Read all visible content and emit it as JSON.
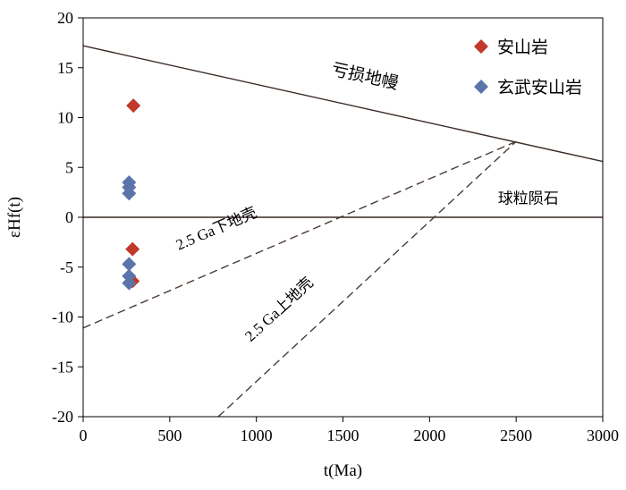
{
  "chart_data": {
    "type": "scatter",
    "xlabel": "t(Ma)",
    "ylabel": "εHf(t)",
    "xlim": [
      0,
      3000
    ],
    "ylim": [
      -20,
      20
    ],
    "x_ticks": [
      "0",
      "500",
      "1000",
      "1500",
      "2000",
      "2500",
      "3000"
    ],
    "y_ticks": [
      "20",
      "15",
      "10",
      "5",
      "0",
      "-5",
      "-10",
      "-15",
      "-20"
    ],
    "grid": false,
    "legend_position": "top-right",
    "series": [
      {
        "name": "安山岩",
        "marker": "diamond",
        "color": "#c0392b",
        "points": [
          {
            "x": 290,
            "y": 11.2
          },
          {
            "x": 285,
            "y": -3.2
          },
          {
            "x": 285,
            "y": -6.4
          }
        ]
      },
      {
        "name": "玄武安山岩",
        "marker": "diamond",
        "color": "#5b75aa",
        "points": [
          {
            "x": 265,
            "y": 3.5
          },
          {
            "x": 265,
            "y": 3.0
          },
          {
            "x": 265,
            "y": 2.4
          },
          {
            "x": 265,
            "y": -4.7
          },
          {
            "x": 265,
            "y": -5.9
          },
          {
            "x": 265,
            "y": -6.6
          }
        ]
      }
    ],
    "reference_lines": [
      {
        "label": "亏损地幔",
        "style": "solid",
        "x": [
          0,
          3000
        ],
        "y": [
          17.2,
          5.6
        ]
      },
      {
        "label": "球粒陨石",
        "style": "solid",
        "x": [
          0,
          3000
        ],
        "y": [
          0,
          0
        ]
      },
      {
        "label": "2.5 Ga下地壳",
        "style": "dashed",
        "x": [
          0,
          2500
        ],
        "y": [
          -11.1,
          7.6
        ]
      },
      {
        "label": "2.5 Ga上地壳",
        "style": "dashed",
        "x": [
          780,
          2500
        ],
        "y": [
          -20,
          7.6
        ]
      }
    ]
  }
}
